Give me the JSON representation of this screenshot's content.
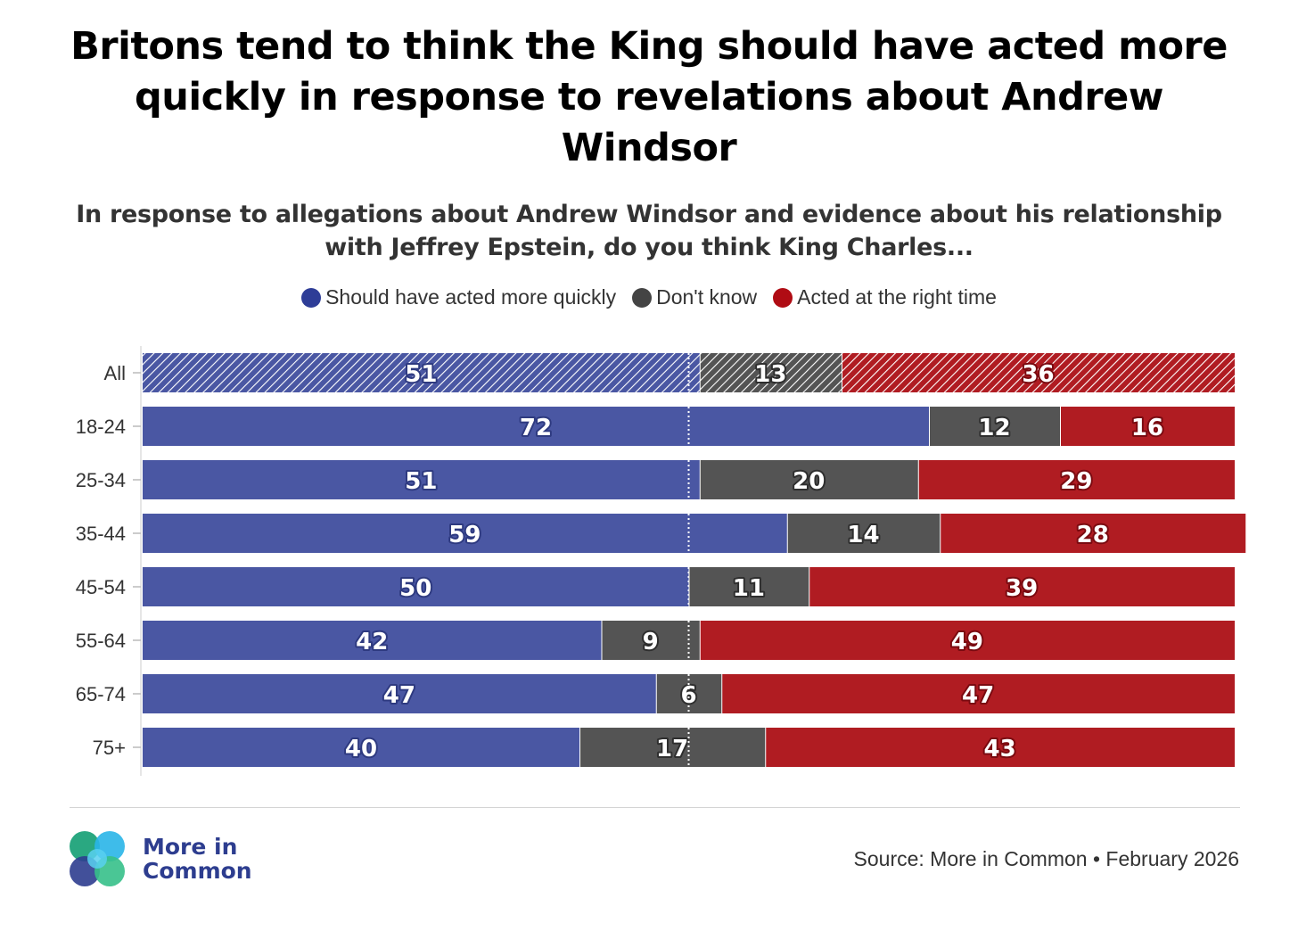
{
  "title": "Britons tend to think the King should have acted more quickly in response to revelations about Andrew Windsor",
  "subtitle": "In response to allegations about Andrew Windsor and evidence about his relationship with Jeffrey Epstein, do you think King Charles...",
  "legend": [
    {
      "label": "Should have acted more quickly",
      "color": "#4a57a3"
    },
    {
      "label": "Don't know",
      "color": "#545454"
    },
    {
      "label": "Acted at the right time",
      "color": "#b01c22"
    }
  ],
  "chart_data": {
    "type": "bar",
    "orientation": "horizontal",
    "stacked": true,
    "normalized": true,
    "categories": [
      "All",
      "18-24",
      "25-34",
      "35-44",
      "45-54",
      "55-64",
      "65-74",
      "75+"
    ],
    "series": [
      {
        "name": "Should have acted more quickly",
        "color": "#4a57a3",
        "values": [
          51,
          72,
          51,
          59,
          50,
          42,
          47,
          40
        ]
      },
      {
        "name": "Don't know",
        "color": "#545454",
        "values": [
          13,
          12,
          20,
          14,
          11,
          9,
          6,
          17
        ]
      },
      {
        "name": "Acted at the right time",
        "color": "#b01c22",
        "values": [
          36,
          16,
          29,
          28,
          39,
          49,
          47,
          43
        ]
      }
    ],
    "highlighted_category": "All",
    "reference_line": 50,
    "xlim": [
      0,
      100
    ],
    "legend_position": "top"
  },
  "footer": {
    "logo_line1": "More in",
    "logo_line2": "Common",
    "source": "Source: More in Common • February 2026"
  }
}
